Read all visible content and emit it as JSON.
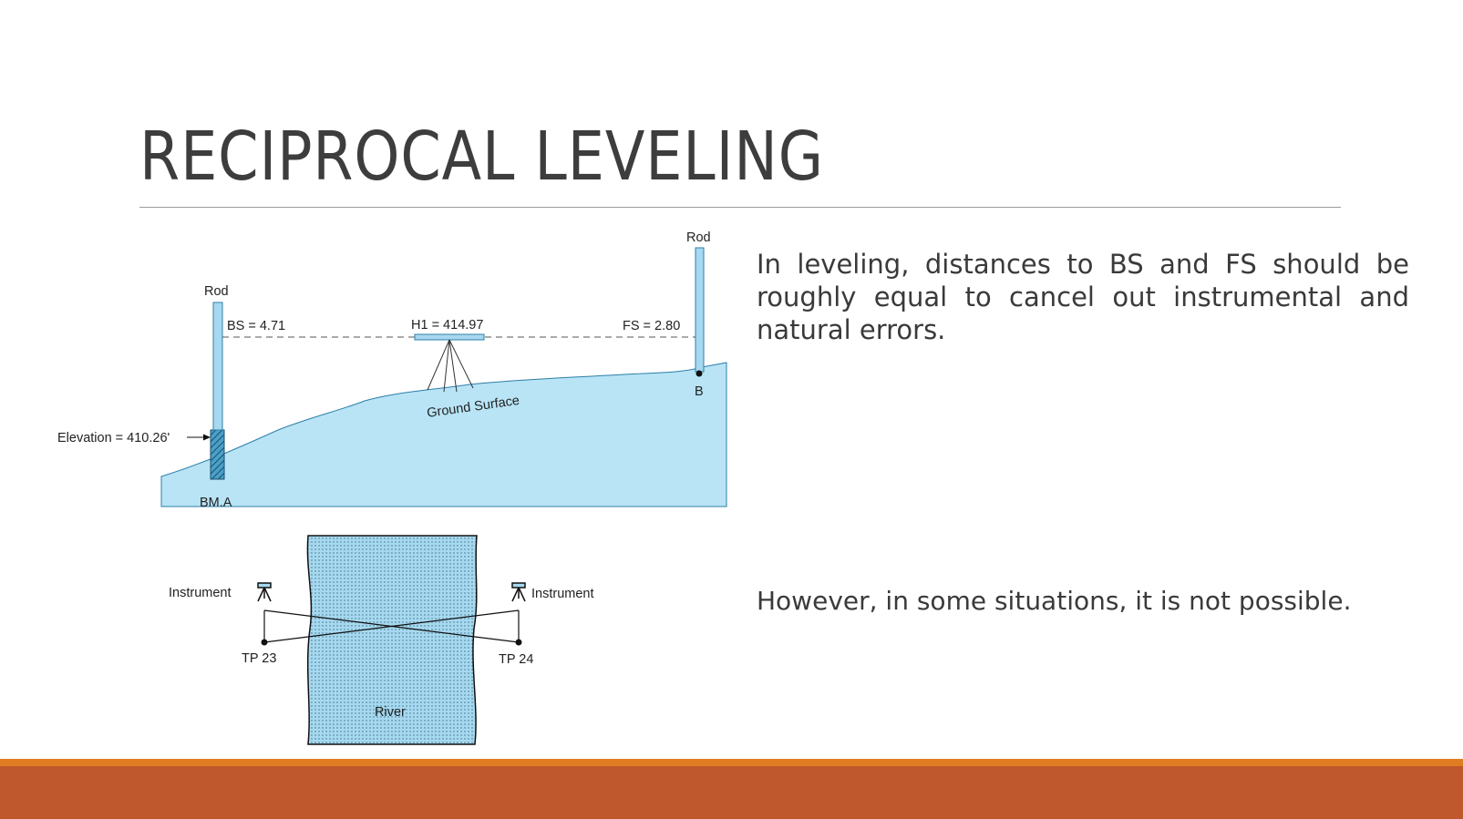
{
  "slide": {
    "title": "RECIPROCAL LEVELING",
    "paragraph_1": "In leveling, distances to BS and FS should be roughly equal to cancel out instrumental and natural errors.",
    "paragraph_2": "However, in some situations, it is not possible."
  },
  "figure_leveling": {
    "rod_left_label": "Rod",
    "rod_right_label": "Rod",
    "bs_label": "BS = 4.71",
    "hi_label": "H1 = 414.97",
    "fs_label": "FS = 2.80",
    "elevation_label": "Elevation = 410.26'",
    "ground_label": "Ground Surface",
    "point_b_label": "B",
    "benchmark_label": "BM.A"
  },
  "figure_river": {
    "instrument_left_label": "Instrument",
    "instrument_right_label": "Instrument",
    "tp_left_label": "TP 23",
    "tp_right_label": "TP 24",
    "river_label": "River"
  },
  "colors": {
    "title_text": "#3d3d3d",
    "ground_fill": "#b8e4f6",
    "rod_fill": "#a6d8f0",
    "river_fill": "#a6d9ef",
    "band_orange": "#e07d22",
    "band_rust": "#bf582c"
  }
}
